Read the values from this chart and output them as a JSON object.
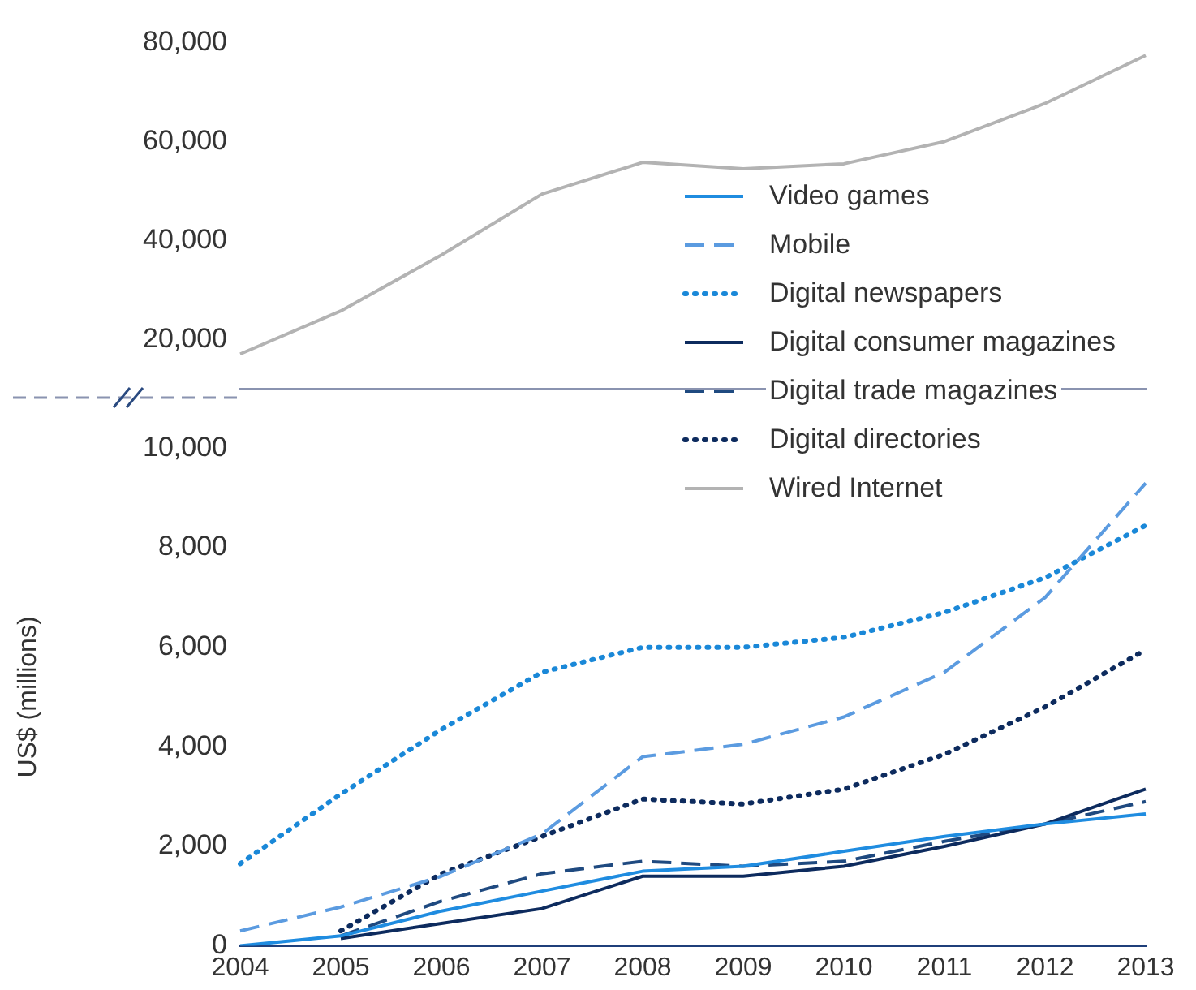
{
  "chart_data": [
    {
      "type": "line",
      "categories": [
        "2004",
        "2005",
        "2006",
        "2007",
        "2008",
        "2009",
        "2010",
        "2011",
        "2012",
        "2013"
      ],
      "ylim": [
        10000,
        80000
      ],
      "yticks": [
        {
          "value": 20000,
          "label": "20,000"
        },
        {
          "value": 40000,
          "label": "40,000"
        },
        {
          "value": 60000,
          "label": "60,000"
        },
        {
          "value": 80000,
          "label": "80,000"
        }
      ],
      "grid": false,
      "tick_labels": "y",
      "legend": "bottom right",
      "series": [
        {
          "name": "Wired Internet",
          "color": "#b3b3b3",
          "line_style": "solid",
          "values": [
            17100,
            25800,
            37100,
            49400,
            55800,
            54500,
            55500,
            60000,
            67700,
            77400
          ]
        }
      ]
    },
    {
      "type": "line",
      "categories": [
        "2004",
        "2005",
        "2006",
        "2007",
        "2008",
        "2009",
        "2010",
        "2011",
        "2012",
        "2013"
      ],
      "ylim": [
        0,
        10000
      ],
      "yticks": [
        0,
        {
          "value": 2000,
          "label": "2,000"
        },
        {
          "value": 4000,
          "label": "4,000"
        },
        {
          "value": 6000,
          "label": "6,000"
        },
        {
          "value": 8000,
          "label": "8,000"
        },
        {
          "value": 10000,
          "label": "10,000"
        }
      ],
      "ylabel": "US$ (millions)",
      "grid": false,
      "legend": "top right",
      "series": [
        {
          "name": "Video games",
          "color": "#1f8ce0",
          "line_style": "solid",
          "values": [
            0,
            200,
            700,
            1100,
            1500,
            1600,
            1900,
            2200,
            2450,
            2650
          ]
        },
        {
          "name": "Mobile",
          "color": "#5b9be0",
          "line_style": "dashed",
          "values": [
            300,
            780,
            1400,
            2250,
            3800,
            4050,
            4600,
            5500,
            7000,
            9300
          ]
        },
        {
          "name": "Digital newspapers",
          "color": "#1a88d8",
          "line_style": "dotted",
          "values": [
            1650,
            3050,
            4350,
            5500,
            6000,
            6000,
            6200,
            6700,
            7400,
            8450
          ]
        },
        {
          "name": "Digital consumer magazines",
          "color": "#0d2b5e",
          "line_style": "solid",
          "values": [
            null,
            150,
            450,
            750,
            1400,
            1400,
            1600,
            2000,
            2450,
            3150
          ]
        },
        {
          "name": "Digital trade magazines",
          "color": "#1f4a80",
          "line_style": "dashed",
          "values": [
            null,
            200,
            900,
            1450,
            1700,
            1600,
            1700,
            2100,
            2450,
            2900
          ]
        },
        {
          "name": "Digital directories",
          "color": "#0d2b5e",
          "line_style": "dotted",
          "values": [
            null,
            300,
            1450,
            2200,
            2950,
            2850,
            3150,
            3850,
            4800,
            5950
          ]
        }
      ]
    }
  ]
}
